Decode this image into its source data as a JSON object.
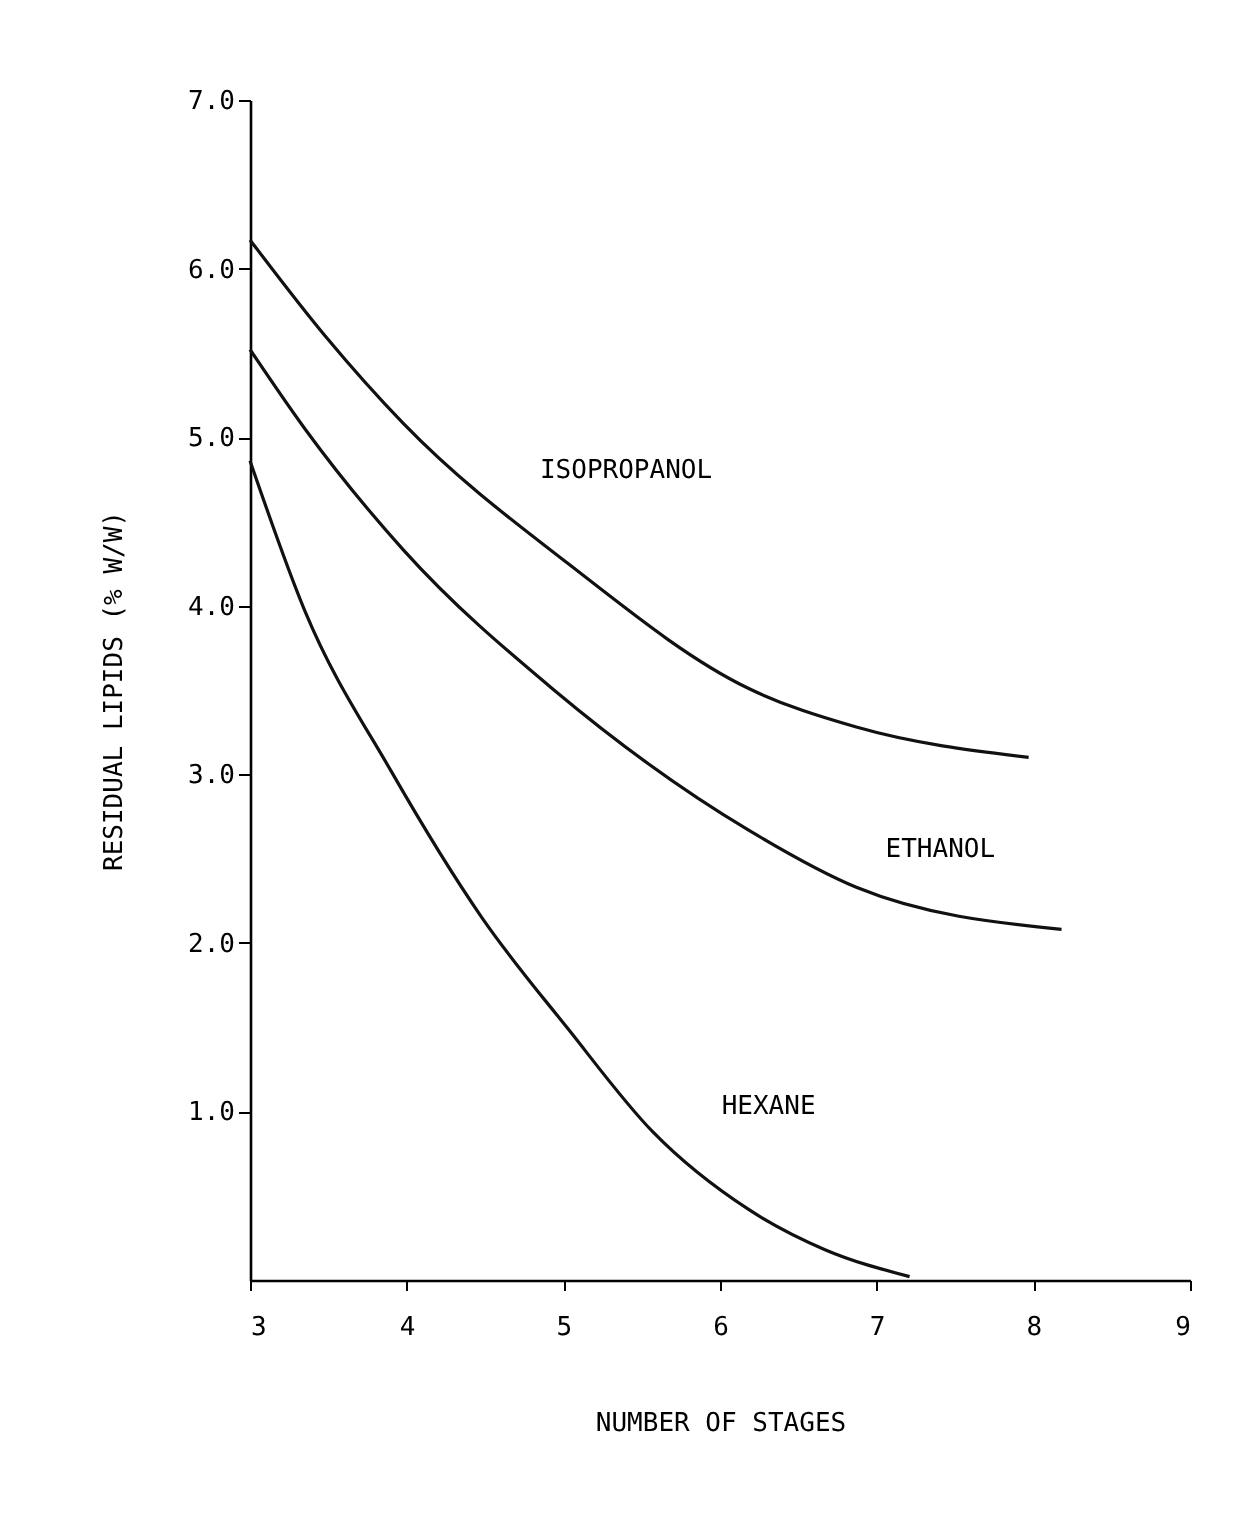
{
  "chart_data": {
    "type": "line",
    "xlabel": "NUMBER OF STAGES",
    "ylabel": "RESIDUAL LIPIDS (% W/W)",
    "xlim": [
      3,
      9
    ],
    "xticks": [
      3,
      4,
      5,
      6,
      7,
      8,
      9
    ],
    "ylim": [
      0,
      7
    ],
    "yticks": [
      {
        "value": 1,
        "label": "1.0"
      },
      {
        "value": 2,
        "label": "2.0"
      },
      {
        "value": 3,
        "label": "3.0"
      },
      {
        "value": 4,
        "label": "4.0"
      },
      {
        "value": 5,
        "label": "5.0"
      },
      {
        "value": 6,
        "label": "6.0"
      },
      {
        "value": 7,
        "label": "7.0"
      }
    ],
    "grid": false,
    "legend": false,
    "marker": "none",
    "line_style": "solid",
    "series": [
      {
        "name": "ISOPROPANOL",
        "color": "#111111",
        "x": [
          3,
          3.48,
          3.98,
          5.03,
          6.18,
          6.87,
          7.97
        ],
        "values": [
          6.17,
          5.6,
          5.08,
          4.25,
          3.51,
          3.28,
          3.1
        ]
      },
      {
        "name": "ETHANOL",
        "color": "#111111",
        "x": [
          3,
          3.35,
          3.98,
          4.94,
          6.18,
          6.87,
          8.18
        ],
        "values": [
          5.52,
          5.05,
          4.33,
          3.5,
          2.67,
          2.33,
          2.08
        ]
      },
      {
        "name": "HEXANE",
        "color": "#111111",
        "x": [
          3,
          3.35,
          3.9,
          4.48,
          5.03,
          5.57,
          6.18,
          6.67,
          7.21
        ],
        "values": [
          4.86,
          3.97,
          3.02,
          2.15,
          1.49,
          0.88,
          0.42,
          0.18,
          0.02
        ]
      }
    ]
  }
}
